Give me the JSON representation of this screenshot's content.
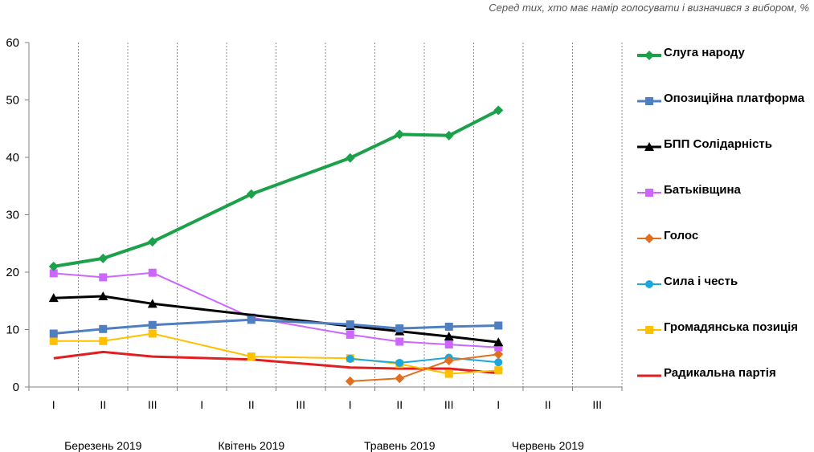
{
  "subtitle": "Серед тих, хто має намір голосувати і визначився з вибором, %",
  "chart_data": {
    "type": "line",
    "y_ticks": [
      0,
      10,
      20,
      30,
      40,
      50,
      60
    ],
    "ylim": [
      0,
      60
    ],
    "x_tick_labels": [
      "I",
      "II",
      "III",
      "I",
      "II",
      "III",
      "I",
      "II",
      "III",
      "I",
      "II",
      "III"
    ],
    "month_labels": [
      "Березень 2019",
      "Квітень 2019",
      "Травень 2019",
      "Червень 2019"
    ],
    "grid": "vertical dashed",
    "legend_position": "right",
    "series": [
      {
        "name": "Слуга народу",
        "color": "#1aa14a",
        "marker": "diamond",
        "width": 4,
        "points": [
          [
            0,
            21.0
          ],
          [
            1,
            22.4
          ],
          [
            2,
            25.3
          ],
          [
            4,
            33.6
          ],
          [
            6,
            39.9
          ],
          [
            7,
            44.0
          ],
          [
            8,
            43.8
          ],
          [
            9,
            48.2
          ]
        ]
      },
      {
        "name": "Опозиційна платформа",
        "color": "#4f7fc0",
        "marker": "square",
        "width": 3,
        "points": [
          [
            0,
            9.3
          ],
          [
            1,
            10.1
          ],
          [
            2,
            10.8
          ],
          [
            4,
            11.7
          ],
          [
            6,
            10.9
          ],
          [
            7,
            10.2
          ],
          [
            8,
            10.5
          ],
          [
            9,
            10.7
          ]
        ]
      },
      {
        "name": "БПП Солідарність",
        "color": "#000000",
        "marker": "triangle",
        "width": 3,
        "points": [
          [
            0,
            15.5
          ],
          [
            1,
            15.8
          ],
          [
            2,
            14.5
          ],
          [
            6,
            10.6
          ],
          [
            7,
            9.7
          ],
          [
            8,
            8.8
          ],
          [
            9,
            7.8
          ]
        ]
      },
      {
        "name": "Батьківщина",
        "color": "#cc66ff",
        "marker": "square",
        "width": 2,
        "points": [
          [
            0,
            19.8
          ],
          [
            1,
            19.1
          ],
          [
            2,
            19.9
          ],
          [
            4,
            12.1
          ],
          [
            6,
            9.1
          ],
          [
            7,
            7.9
          ],
          [
            8,
            7.4
          ],
          [
            9,
            6.9
          ]
        ]
      },
      {
        "name": "Голос",
        "color": "#e07020",
        "marker": "diamond",
        "width": 2,
        "points": [
          [
            6,
            1.0
          ],
          [
            7,
            1.5
          ],
          [
            8,
            4.6
          ],
          [
            9,
            5.7
          ]
        ]
      },
      {
        "name": "Сила і честь",
        "color": "#1ba8e0",
        "marker": "circle",
        "width": 2,
        "points": [
          [
            6,
            4.9
          ],
          [
            7,
            4.2
          ],
          [
            8,
            5.1
          ],
          [
            9,
            4.3
          ]
        ]
      },
      {
        "name": "Громадянська позиція",
        "color": "#ffc000",
        "marker": "square",
        "width": 2,
        "points": [
          [
            0,
            8.0
          ],
          [
            1,
            8.0
          ],
          [
            2,
            9.3
          ],
          [
            4,
            5.3
          ],
          [
            6,
            5.0
          ],
          [
            7,
            4.0
          ],
          [
            8,
            2.3
          ],
          [
            9,
            2.9
          ]
        ]
      },
      {
        "name": "Радикальна партія",
        "color": "#e02020",
        "marker": "none",
        "width": 3,
        "points": [
          [
            0,
            5.0
          ],
          [
            1,
            6.1
          ],
          [
            2,
            5.3
          ],
          [
            4,
            4.8
          ],
          [
            6,
            3.4
          ],
          [
            7,
            3.2
          ],
          [
            8,
            3.2
          ],
          [
            9,
            2.4
          ]
        ]
      }
    ]
  }
}
